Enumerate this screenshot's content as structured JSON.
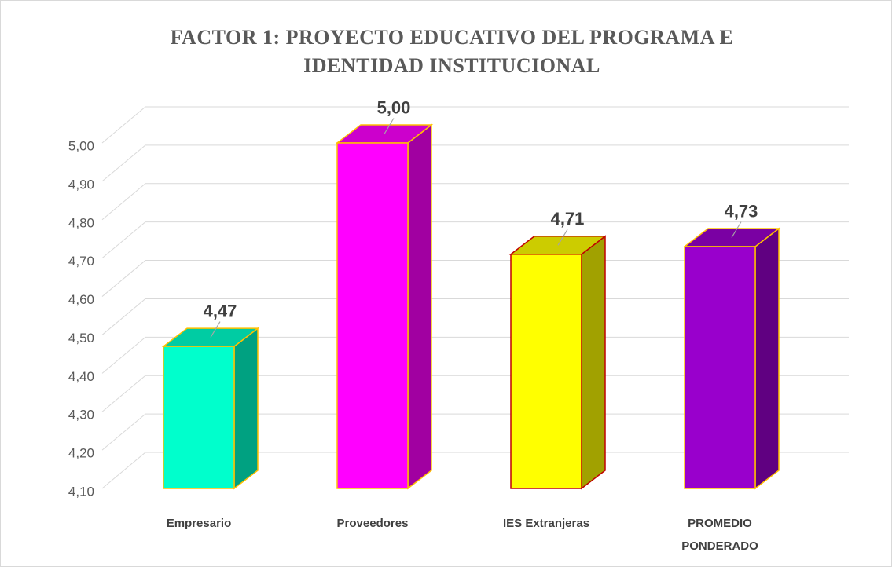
{
  "chart_data": {
    "type": "bar3d",
    "title": "FACTOR 1: PROYECTO EDUCATIVO DEL PROGRAMA E IDENTIDAD INSTITUCIONAL",
    "categories": [
      "Empresario",
      "Proveedores",
      "IES Extranjeras",
      "PROMEDIO PONDERADO"
    ],
    "values": [
      4.47,
      5.0,
      4.71,
      4.73
    ],
    "value_labels": [
      "4,47",
      "5,00",
      "4,71",
      "4,73"
    ],
    "colors": [
      "#00ffcc",
      "#ff00ff",
      "#ffff00",
      "#9900cc"
    ],
    "edge_colors": [
      "#ffc000",
      "#ffc000",
      "#c00000",
      "#ffc000"
    ],
    "ylim": [
      4.1,
      5.0
    ],
    "yticks": [
      {
        "value": 4.1,
        "label": "4,10"
      },
      {
        "value": 4.2,
        "label": "4,20"
      },
      {
        "value": 4.3,
        "label": "4,30"
      },
      {
        "value": 4.4,
        "label": "4,40"
      },
      {
        "value": 4.5,
        "label": "4,50"
      },
      {
        "value": 4.6,
        "label": "4,60"
      },
      {
        "value": 4.7,
        "label": "4,70"
      },
      {
        "value": 4.8,
        "label": "4,80"
      },
      {
        "value": 4.9,
        "label": "4,90"
      },
      {
        "value": 5.0,
        "label": "5,00"
      }
    ],
    "grid": true
  }
}
